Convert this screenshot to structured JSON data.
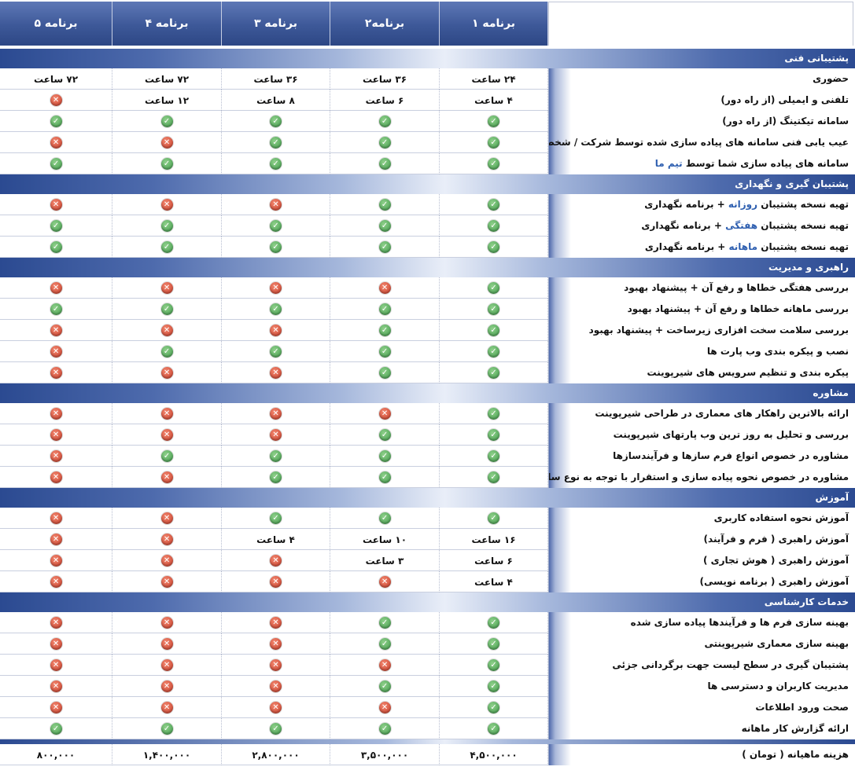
{
  "headers": [
    "برنامه ۵",
    "برنامه ۴",
    "برنامه ۳",
    "برنامه۲",
    "برنامه ۱"
  ],
  "sections": [
    {
      "title": "پشتیبانی فنی",
      "rows": [
        {
          "label": [
            "حضوری"
          ],
          "cells": [
            "۷۲ ساعت",
            "۷۲ ساعت",
            "۳۶ ساعت",
            "۳۶ ساعت",
            "۲۴ ساعت"
          ]
        },
        {
          "label": [
            "تلفنی و ایمیلی (از راه دور)"
          ],
          "cells": [
            "no",
            "۱۲ ساعت",
            "۸ ساعت",
            "۶ ساعت",
            "۴ ساعت"
          ]
        },
        {
          "label": [
            "سامانه تیکتینگ (از راه دور)"
          ],
          "cells": [
            "yes",
            "yes",
            "yes",
            "yes",
            "yes"
          ]
        },
        {
          "label": [
            "عیب یابی فنی سامانه های پیاده سازی شده توسط شرکت / شخص غیر"
          ],
          "cells": [
            "no",
            "no",
            "yes",
            "yes",
            "yes"
          ]
        },
        {
          "label": [
            "سامانه های پیاده سازی شما توسط ",
            "تیم ما"
          ],
          "cells": [
            "yes",
            "yes",
            "yes",
            "yes",
            "yes"
          ]
        }
      ]
    },
    {
      "title": "پشتیبان گیری و نگهداری",
      "rows": [
        {
          "label": [
            "تهیه نسخه پشتیبان ",
            "روزانه",
            " + برنامه نگهداری"
          ],
          "cells": [
            "no",
            "no",
            "no",
            "yes",
            "yes"
          ]
        },
        {
          "label": [
            "تهیه نسخه پشتیبان ",
            "هفتگی",
            " + برنامه نگهداری"
          ],
          "cells": [
            "yes",
            "yes",
            "yes",
            "yes",
            "yes"
          ]
        },
        {
          "label": [
            "تهیه نسخه پشتیبان ",
            "ماهانه",
            " + برنامه نگهداری"
          ],
          "cells": [
            "yes",
            "yes",
            "yes",
            "yes",
            "yes"
          ]
        }
      ]
    },
    {
      "title": "راهبری و مدیریت",
      "rows": [
        {
          "label": [
            "بررسی هفتگی خطاها و رفع آن + پیشنهاد بهبود"
          ],
          "cells": [
            "no",
            "no",
            "no",
            "no",
            "yes"
          ]
        },
        {
          "label": [
            "بررسی ماهانه خطاها و رفع آن + پیشنهاد بهبود"
          ],
          "cells": [
            "yes",
            "yes",
            "yes",
            "yes",
            "yes"
          ]
        },
        {
          "label": [
            "بررسی سلامت سخت افزاری زیرساخت + پیشنهاد بهبود"
          ],
          "cells": [
            "no",
            "no",
            "no",
            "yes",
            "yes"
          ]
        },
        {
          "label": [
            "نصب و پیکره بندی وب پارت ها"
          ],
          "cells": [
            "no",
            "yes",
            "yes",
            "yes",
            "yes"
          ]
        },
        {
          "label": [
            "پیکره بندی و تنظیم سرویس های شیرپوینت"
          ],
          "cells": [
            "no",
            "no",
            "no",
            "yes",
            "yes"
          ]
        }
      ]
    },
    {
      "title": "مشاوره",
      "rows": [
        {
          "label": [
            "ارائه بالاترین راهکار های معماری در طراحی شیرپوینت"
          ],
          "cells": [
            "no",
            "no",
            "no",
            "no",
            "yes"
          ]
        },
        {
          "label": [
            "بررسی و تحلیل به روز ترین وب پارتهای شیرپوینت"
          ],
          "cells": [
            "no",
            "no",
            "no",
            "yes",
            "yes"
          ]
        },
        {
          "label": [
            "مشاوره در خصوص انواع فرم سازها و فرآیندسازها"
          ],
          "cells": [
            "no",
            "yes",
            "yes",
            "yes",
            "yes"
          ]
        },
        {
          "label": [
            "مشاوره در خصوص نحوه پیاده سازی و استقرار با توجه به نوع سازمان"
          ],
          "cells": [
            "no",
            "no",
            "yes",
            "yes",
            "yes"
          ]
        }
      ]
    },
    {
      "title": "آموزش",
      "rows": [
        {
          "label": [
            "آموزش نحوه استفاده کاربری"
          ],
          "cells": [
            "no",
            "no",
            "yes",
            "yes",
            "yes"
          ]
        },
        {
          "label": [
            "آموزش راهبری ( فرم و فرآیند)"
          ],
          "cells": [
            "no",
            "no",
            "۴ ساعت",
            "۱۰ ساعت",
            "۱۶ ساعت"
          ]
        },
        {
          "label": [
            "آموزش راهبری ( هوش تجاری )"
          ],
          "cells": [
            "no",
            "no",
            "no",
            "۳ ساعت",
            "۶ ساعت"
          ]
        },
        {
          "label": [
            "آموزش راهبری ( برنامه نویسی)"
          ],
          "cells": [
            "no",
            "no",
            "no",
            "no",
            "۴ ساعت"
          ]
        }
      ]
    },
    {
      "title": "خدمات کارشناسی",
      "rows": [
        {
          "label": [
            "بهینه سازی فرم ها و فرآیندها پیاده سازی شده"
          ],
          "cells": [
            "no",
            "no",
            "no",
            "yes",
            "yes"
          ]
        },
        {
          "label": [
            "بهینه سازی معماری شیرپوینتی"
          ],
          "cells": [
            "no",
            "no",
            "no",
            "yes",
            "yes"
          ]
        },
        {
          "label": [
            "پشتیبان گیری در سطح لیست جهت برگردانی جزئی"
          ],
          "cells": [
            "no",
            "no",
            "no",
            "no",
            "yes"
          ]
        },
        {
          "label": [
            "مدیریت کاربران و دسترسی ها"
          ],
          "cells": [
            "no",
            "no",
            "no",
            "yes",
            "yes"
          ]
        },
        {
          "label": [
            "صحت ورود اطلاعات"
          ],
          "cells": [
            "no",
            "no",
            "no",
            "no",
            "yes"
          ]
        },
        {
          "label": [
            "ارائه گزارش کار ماهانه"
          ],
          "cells": [
            "yes",
            "yes",
            "yes",
            "yes",
            "yes"
          ]
        }
      ]
    }
  ],
  "footer": {
    "label": "هزینه ماهیانه ( تومان )",
    "cells": [
      "۸۰۰,۰۰۰",
      "۱,۴۰۰,۰۰۰",
      "۲,۸۰۰,۰۰۰",
      "۳,۵۰۰,۰۰۰",
      "۴,۵۰۰,۰۰۰"
    ]
  },
  "icons": {
    "yes": "check-icon",
    "no": "cross-icon"
  },
  "colors": {
    "header": "#3d5898",
    "yes": "#4caf50",
    "no": "#d9442c",
    "highlight": "#2e5fb0"
  }
}
